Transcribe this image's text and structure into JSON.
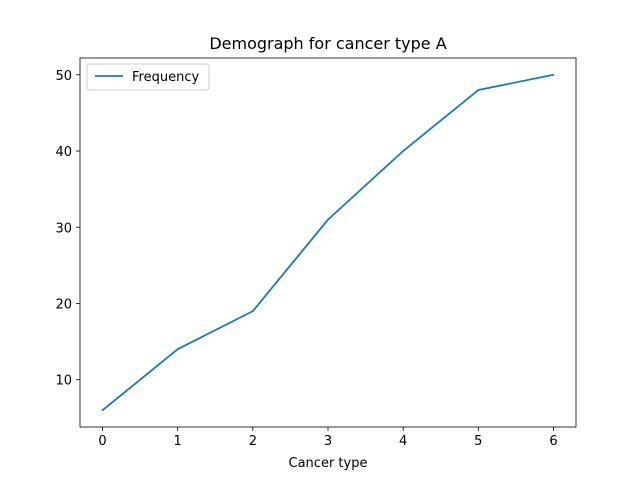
{
  "chart_data": {
    "type": "line",
    "title": "Demograph for cancer type A",
    "xlabel": "Cancer type",
    "ylabel": "",
    "x": [
      0,
      1,
      2,
      3,
      4,
      5,
      6
    ],
    "series": [
      {
        "name": "Frequency",
        "values": [
          6,
          14,
          19,
          31,
          40,
          48,
          50
        ],
        "color": "#1f77b4"
      }
    ],
    "xlim": [
      -0.3,
      6.3
    ],
    "ylim": [
      3.8,
      52.2
    ],
    "xticks": [
      0,
      1,
      2,
      3,
      4,
      5,
      6
    ],
    "yticks": [
      10,
      20,
      30,
      40,
      50
    ],
    "grid": false,
    "legend": "top-left"
  }
}
